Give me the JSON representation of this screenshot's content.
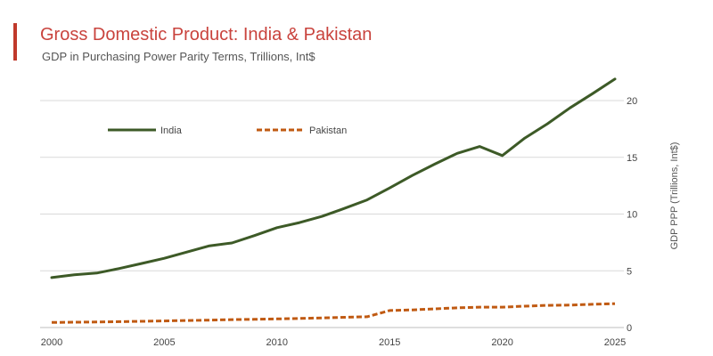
{
  "header": {
    "title": "Gross Domestic Product: India & Pakistan",
    "subtitle": "GDP in Purchasing Power Parity Terms, Trillions, Int$"
  },
  "colors": {
    "accent": "#c0392b",
    "title": "#c9433d",
    "india": "#3d5a27",
    "pakistan": "#c05a12",
    "grid": "#d9d9d9"
  },
  "chart_data": {
    "type": "line",
    "title": "Gross Domestic Product: India & Pakistan",
    "subtitle": "GDP in Purchasing Power Parity Terms, Trillions, Int$",
    "xlabel": "",
    "ylabel": "GDP PPP (Trillions, Int$)",
    "xlim": [
      2000,
      2025
    ],
    "ylim": [
      0,
      22
    ],
    "x_ticks": [
      2000,
      2005,
      2010,
      2015,
      2020,
      2025
    ],
    "y_ticks": [
      0,
      5,
      10,
      15,
      20
    ],
    "grid": true,
    "legend_position": "top-left",
    "x": [
      2000,
      2001,
      2002,
      2003,
      2004,
      2005,
      2006,
      2007,
      2008,
      2009,
      2010,
      2011,
      2012,
      2013,
      2014,
      2015,
      2016,
      2017,
      2018,
      2019,
      2020,
      2021,
      2022,
      2023,
      2024,
      2025
    ],
    "series": [
      {
        "name": "India",
        "style": "solid",
        "values": [
          4.4,
          4.65,
          4.8,
          5.2,
          5.65,
          6.1,
          6.65,
          7.2,
          7.45,
          8.1,
          8.8,
          9.25,
          9.8,
          10.5,
          11.25,
          12.3,
          13.4,
          14.4,
          15.35,
          15.95,
          15.15,
          16.7,
          17.95,
          19.35,
          20.6,
          21.9
        ]
      },
      {
        "name": "Pakistan",
        "style": "dashed",
        "values": [
          0.45,
          0.47,
          0.49,
          0.52,
          0.55,
          0.58,
          0.62,
          0.65,
          0.7,
          0.72,
          0.76,
          0.8,
          0.85,
          0.9,
          0.95,
          1.5,
          1.55,
          1.65,
          1.73,
          1.8,
          1.8,
          1.88,
          1.95,
          1.98,
          2.05,
          2.1
        ]
      }
    ]
  }
}
